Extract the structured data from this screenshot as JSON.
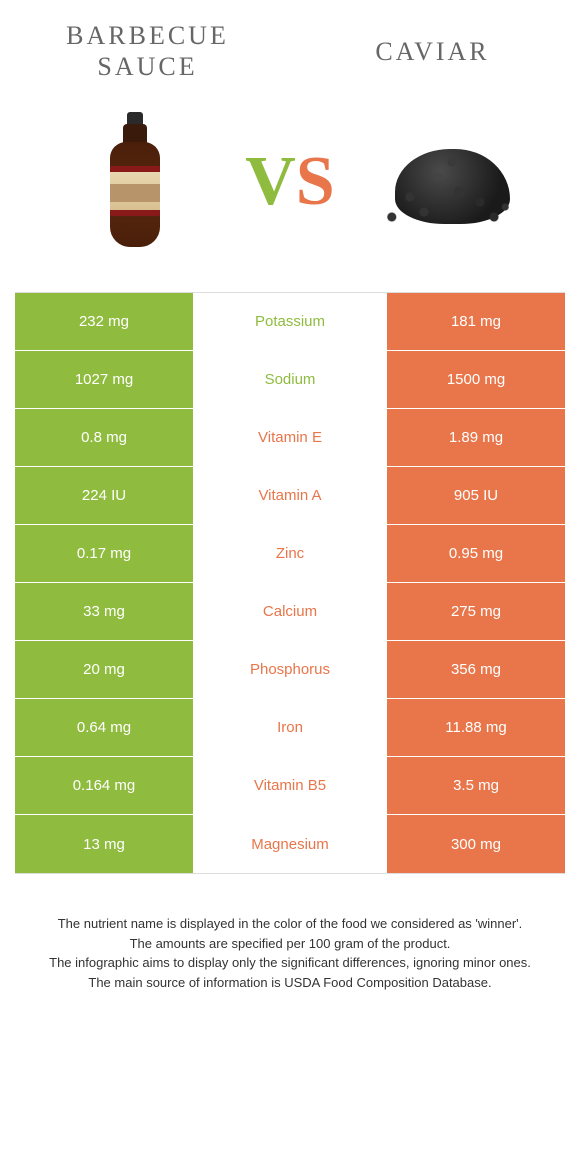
{
  "colors": {
    "left": "#8fbc3f",
    "right": "#e8764a",
    "title": "#666666",
    "footer": "#333333"
  },
  "foods": {
    "left": "Barbecue sauce",
    "right": "Caviar"
  },
  "vs": {
    "v": "V",
    "s": "S"
  },
  "rows": [
    {
      "left": "232 mg",
      "name": "Potassium",
      "right": "181 mg",
      "winner": "left"
    },
    {
      "left": "1027 mg",
      "name": "Sodium",
      "right": "1500 mg",
      "winner": "left"
    },
    {
      "left": "0.8 mg",
      "name": "Vitamin E",
      "right": "1.89 mg",
      "winner": "right"
    },
    {
      "left": "224 IU",
      "name": "Vitamin A",
      "right": "905 IU",
      "winner": "right"
    },
    {
      "left": "0.17 mg",
      "name": "Zinc",
      "right": "0.95 mg",
      "winner": "right"
    },
    {
      "left": "33 mg",
      "name": "Calcium",
      "right": "275 mg",
      "winner": "right"
    },
    {
      "left": "20 mg",
      "name": "Phosphorus",
      "right": "356 mg",
      "winner": "right"
    },
    {
      "left": "0.64 mg",
      "name": "Iron",
      "right": "11.88 mg",
      "winner": "right"
    },
    {
      "left": "0.164 mg",
      "name": "Vitamin B5",
      "right": "3.5 mg",
      "winner": "right"
    },
    {
      "left": "13 mg",
      "name": "Magnesium",
      "right": "300 mg",
      "winner": "right"
    }
  ],
  "footer": [
    "The nutrient name is displayed in the color of the food we considered as 'winner'.",
    "The amounts are specified per 100 gram of the product.",
    "The infographic aims to display only the significant differences, ignoring minor ones.",
    "The main source of information is USDA Food Composition Database."
  ]
}
